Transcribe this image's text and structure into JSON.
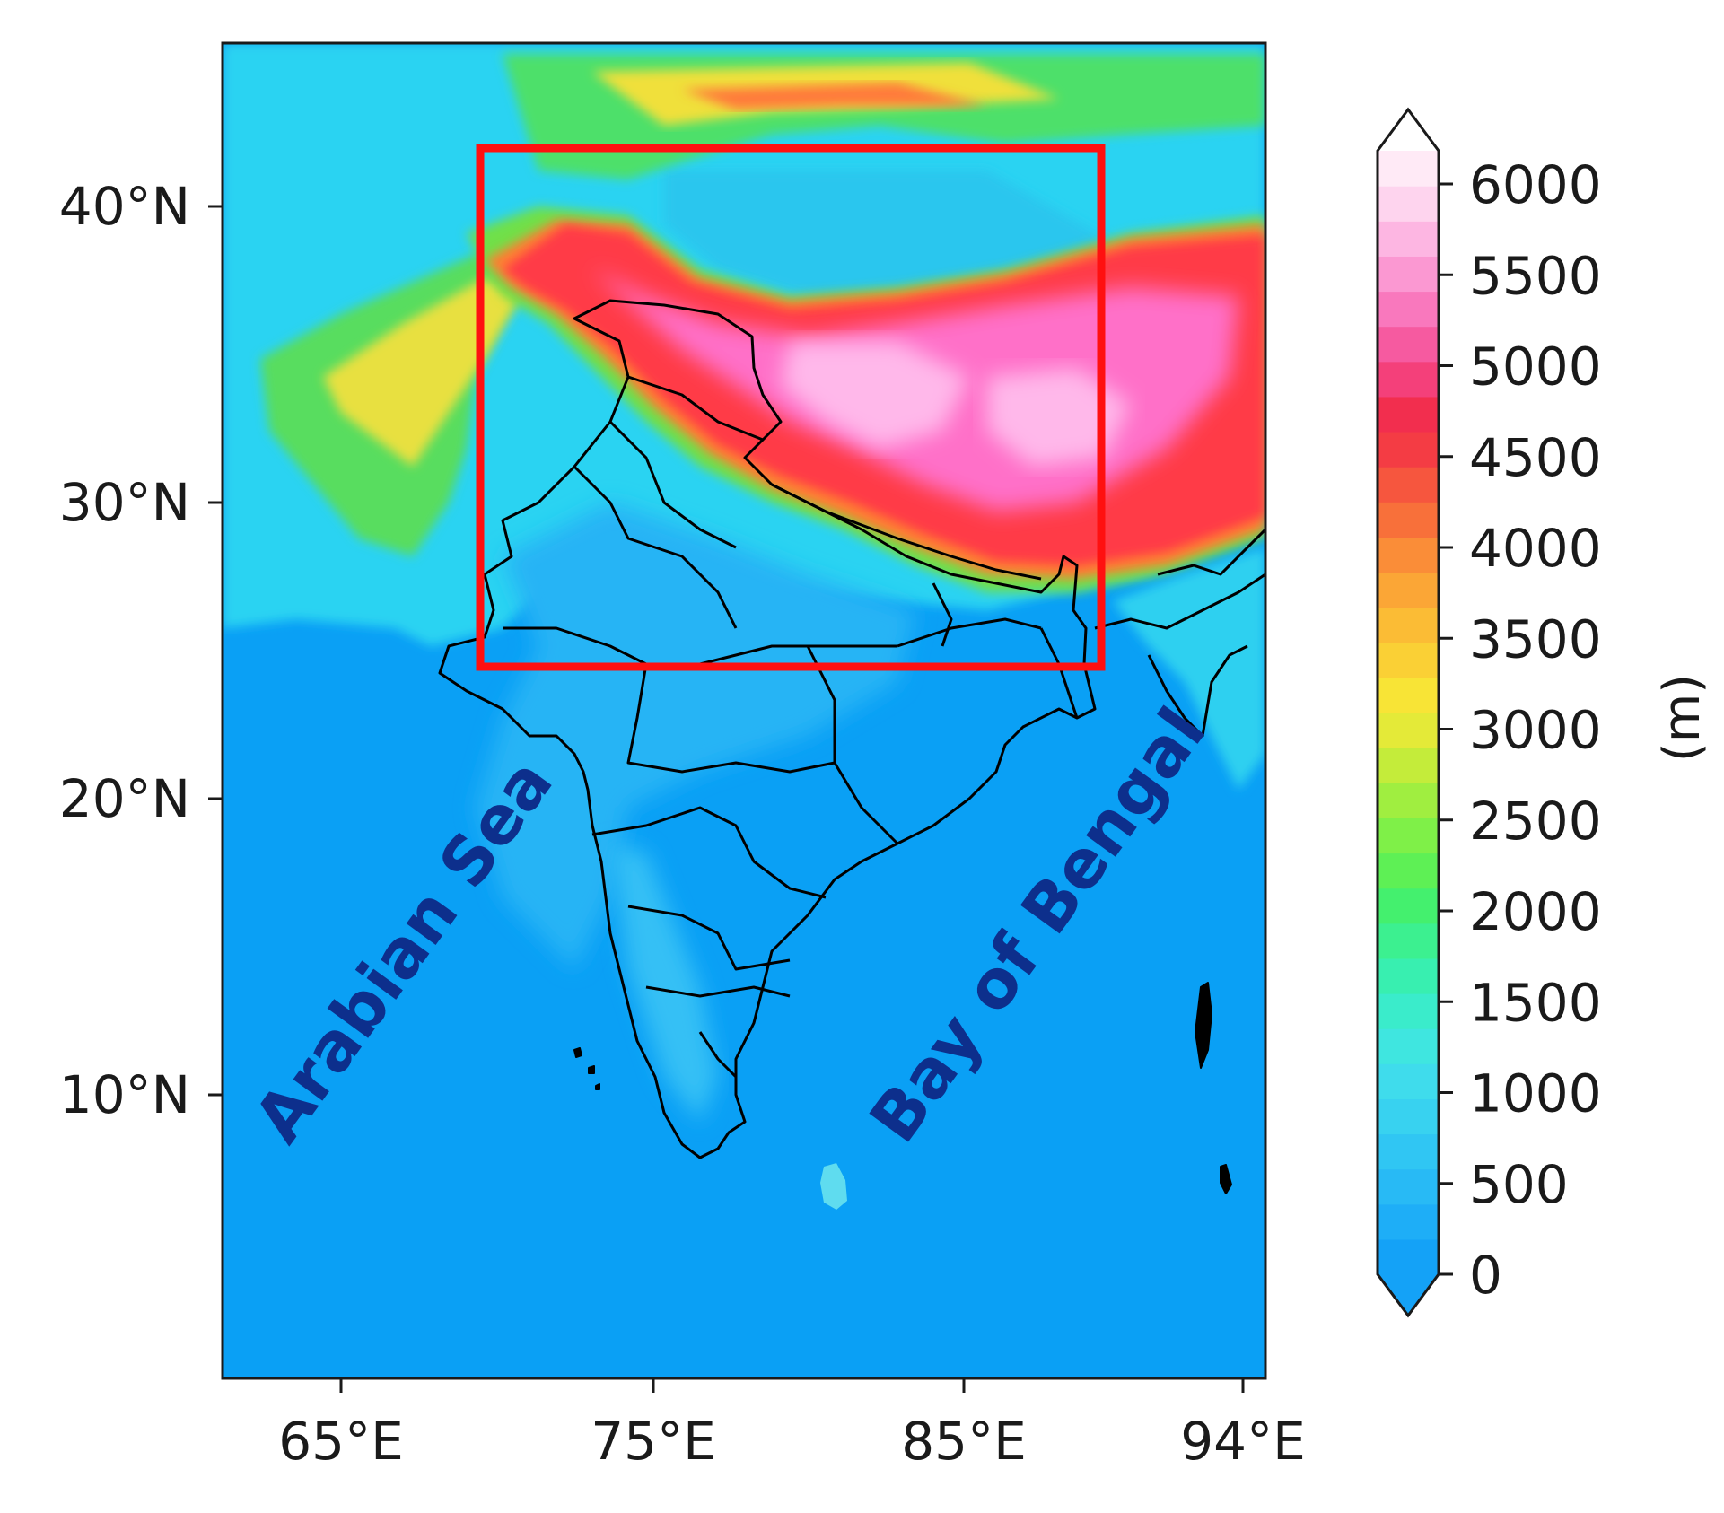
{
  "map": {
    "lon_ticks": [
      "65°E",
      "75°E",
      "85°E",
      "94°E"
    ],
    "lat_ticks": [
      "40°N",
      "30°N",
      "20°N",
      "10°N"
    ],
    "labels": {
      "arabian_sea": "Arabian Sea",
      "bay_of_bengal": "Bay of Bengal"
    },
    "ocean_color": "#0aa0f5",
    "box_color": "#ff1010",
    "border_color": "#000000"
  },
  "colorbar": {
    "ticks": [
      "0",
      "500",
      "1000",
      "1500",
      "2000",
      "2500",
      "3000",
      "3500",
      "4000",
      "4500",
      "5000",
      "5500",
      "6000"
    ],
    "unit": "(m)",
    "extend": "both"
  },
  "chart_data": {
    "type": "heatmap",
    "xlabel": "",
    "ylabel": "",
    "colorbar_label": "(m)",
    "colorbar_range": [
      0,
      6000
    ],
    "colorbar_ticks": [
      0,
      500,
      1000,
      1500,
      2000,
      2500,
      3000,
      3500,
      4000,
      4500,
      5000,
      5500,
      6000
    ],
    "x_ticks": [
      "65°E",
      "75°E",
      "85°E",
      "94°E"
    ],
    "y_ticks": [
      "40°N",
      "30°N",
      "20°N",
      "10°N"
    ],
    "domain_box": {
      "lon": [
        69.5,
        89.5
      ],
      "lat": [
        24.5,
        42.0
      ]
    },
    "annotations": [
      "Arabian Sea",
      "Bay of Bengal"
    ]
  }
}
